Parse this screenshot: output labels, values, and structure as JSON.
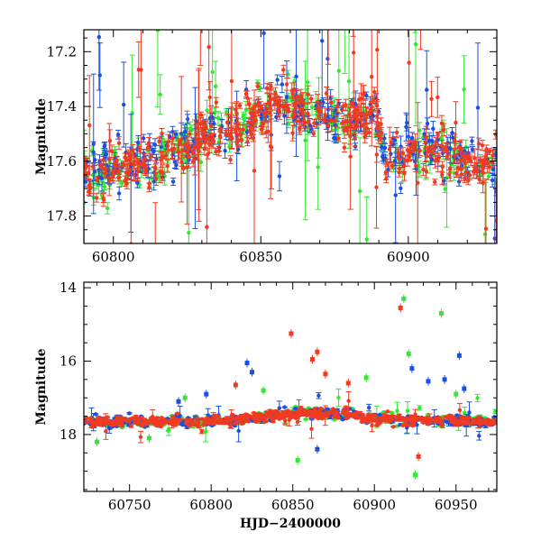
{
  "chart_data": [
    {
      "type": "scatter",
      "name": "zoom",
      "xlabel": "",
      "ylabel": "Magnitude",
      "xlim": [
        60790,
        60930
      ],
      "ylim": [
        17.9,
        17.12
      ],
      "xticks": [
        60800,
        60850,
        60900
      ],
      "xtick_labels": [
        "60800",
        "60850",
        "60900"
      ],
      "yticks": [
        17.2,
        17.4,
        17.6,
        17.8
      ],
      "ytick_labels": [
        "17.2",
        "17.4",
        "17.6",
        "17.8"
      ],
      "series": [
        {
          "name": "green",
          "color": "#33e833",
          "n": 260,
          "seed": 11
        },
        {
          "name": "blue",
          "color": "#1a4fe0",
          "n": 260,
          "seed": 23
        },
        {
          "name": "red",
          "color": "#f03a22",
          "n": 420,
          "seed": 37
        }
      ]
    },
    {
      "type": "scatter",
      "name": "full",
      "xlabel": "HJD−2400000",
      "ylabel": "Magnitude",
      "xlim": [
        60722,
        60975
      ],
      "ylim": [
        19.55,
        13.85
      ],
      "xticks": [
        60750,
        60800,
        60850,
        60900,
        60950
      ],
      "xtick_labels": [
        "60750",
        "60800",
        "60850",
        "60900",
        "60950"
      ],
      "yticks": [
        14,
        16,
        18
      ],
      "ytick_labels": [
        "14",
        "16",
        "18"
      ],
      "series": [
        {
          "name": "green",
          "color": "#33e833",
          "n": 320,
          "seed": 51
        },
        {
          "name": "blue",
          "color": "#1a4fe0",
          "n": 320,
          "seed": 67
        },
        {
          "name": "red",
          "color": "#f03a22",
          "n": 520,
          "seed": 79
        }
      ],
      "outliers": [
        {
          "series": "red",
          "x": 60916,
          "y": 14.55
        },
        {
          "series": "red",
          "x": 60849,
          "y": 15.25
        },
        {
          "series": "red",
          "x": 60862,
          "y": 15.95
        },
        {
          "series": "red",
          "x": 60865,
          "y": 15.75
        },
        {
          "series": "red",
          "x": 60870,
          "y": 16.35
        },
        {
          "series": "red",
          "x": 60815,
          "y": 16.65
        },
        {
          "series": "red",
          "x": 60884,
          "y": 16.6
        },
        {
          "series": "red",
          "x": 60927,
          "y": 18.6
        },
        {
          "series": "green",
          "x": 60918,
          "y": 14.3
        },
        {
          "series": "green",
          "x": 60941,
          "y": 14.7
        },
        {
          "series": "green",
          "x": 60921,
          "y": 15.8
        },
        {
          "series": "green",
          "x": 60925,
          "y": 19.1
        },
        {
          "series": "green",
          "x": 60730,
          "y": 18.2
        },
        {
          "series": "green",
          "x": 60762,
          "y": 18.1
        },
        {
          "series": "green",
          "x": 60784,
          "y": 17.0
        },
        {
          "series": "green",
          "x": 60832,
          "y": 16.8
        },
        {
          "series": "green",
          "x": 60895,
          "y": 16.45
        },
        {
          "series": "green",
          "x": 60950,
          "y": 16.9
        },
        {
          "series": "green",
          "x": 60853,
          "y": 18.7
        },
        {
          "series": "blue",
          "x": 60822,
          "y": 16.05
        },
        {
          "series": "blue",
          "x": 60825,
          "y": 16.3
        },
        {
          "series": "blue",
          "x": 60923,
          "y": 16.2
        },
        {
          "series": "blue",
          "x": 60933,
          "y": 16.55
        },
        {
          "series": "blue",
          "x": 60943,
          "y": 16.5
        },
        {
          "series": "blue",
          "x": 60952,
          "y": 15.85
        },
        {
          "series": "blue",
          "x": 60955,
          "y": 16.75
        },
        {
          "series": "blue",
          "x": 60865,
          "y": 18.4
        },
        {
          "series": "blue",
          "x": 60797,
          "y": 16.9
        },
        {
          "series": "blue",
          "x": 60780,
          "y": 17.1
        }
      ]
    }
  ]
}
